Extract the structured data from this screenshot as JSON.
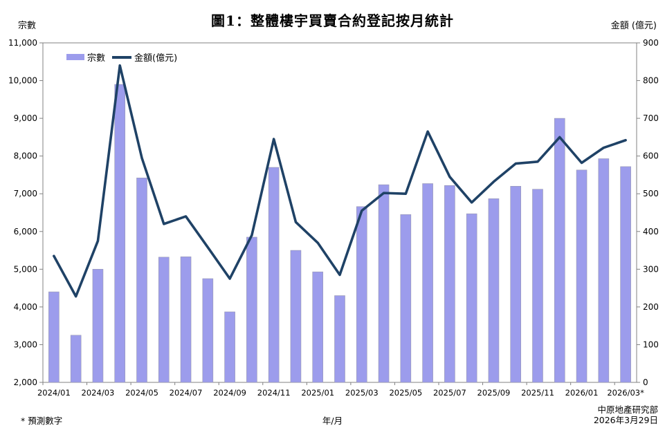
{
  "title": "圖1：整體樓宇買賣合約登記按月統計",
  "left_axis": {
    "title": "宗數",
    "min": 2000,
    "max": 11000,
    "step": 1000
  },
  "right_axis": {
    "title": "金額 (億元)",
    "min": 0,
    "max": 900,
    "step": 100
  },
  "x_axis": {
    "title": "年/月"
  },
  "legend": {
    "bars": "宗數",
    "line": "金額(億元)"
  },
  "footnote": "* 預測數字",
  "source": {
    "org": "中原地產研究部",
    "date": "2026年3月29日"
  },
  "colors": {
    "bar": "#9C9CEC",
    "bar_edge": "#9a9ab0",
    "line": "#1F4266",
    "axis": "#808080"
  },
  "chart_data": {
    "type": "bar",
    "subtype": "bar+line dual axis",
    "title": "圖1：整體樓宇買賣合約登記按月統計",
    "xlabel": "年/月",
    "left_ylabel": "宗數",
    "right_ylabel": "金額 (億元)",
    "left_ylim": [
      2000,
      11000
    ],
    "right_ylim": [
      0,
      900
    ],
    "grid": false,
    "legend_position": "top-left inside",
    "categories": [
      "2024/01",
      "2024/02",
      "2024/03",
      "2024/04",
      "2024/05",
      "2024/06",
      "2024/07",
      "2024/08",
      "2024/09",
      "2024/10",
      "2024/11",
      "2024/12",
      "2025/01",
      "2025/02",
      "2025/03",
      "2025/04",
      "2025/05",
      "2025/06",
      "2025/07",
      "2025/08",
      "2025/09",
      "2025/10",
      "2025/11",
      "2025/12",
      "2026/01",
      "2026/02",
      "2026/03"
    ],
    "x_tick_labels": [
      "2024/01",
      "2024/03",
      "2024/05",
      "2024/07",
      "2024/09",
      "2024/11",
      "2025/01",
      "2025/03",
      "2025/05",
      "2025/07",
      "2025/09",
      "2025/11",
      "2026/01",
      "2026/03*"
    ],
    "series": [
      {
        "name": "宗數",
        "type": "bar",
        "axis": "left",
        "values": [
          4400,
          3250,
          5000,
          9900,
          7420,
          5320,
          5330,
          4750,
          3870,
          5850,
          7700,
          5500,
          4930,
          4300,
          6660,
          7240,
          6450,
          7270,
          7220,
          6470,
          6870,
          7200,
          7120,
          9000,
          7630,
          7930,
          7720
        ]
      },
      {
        "name": "金額(億元)",
        "type": "line",
        "axis": "right",
        "values": [
          335,
          228,
          375,
          840,
          595,
          420,
          440,
          358,
          275,
          390,
          645,
          425,
          370,
          285,
          455,
          502,
          500,
          665,
          545,
          477,
          532,
          580,
          585,
          650,
          582,
          622,
          642
        ]
      }
    ]
  }
}
